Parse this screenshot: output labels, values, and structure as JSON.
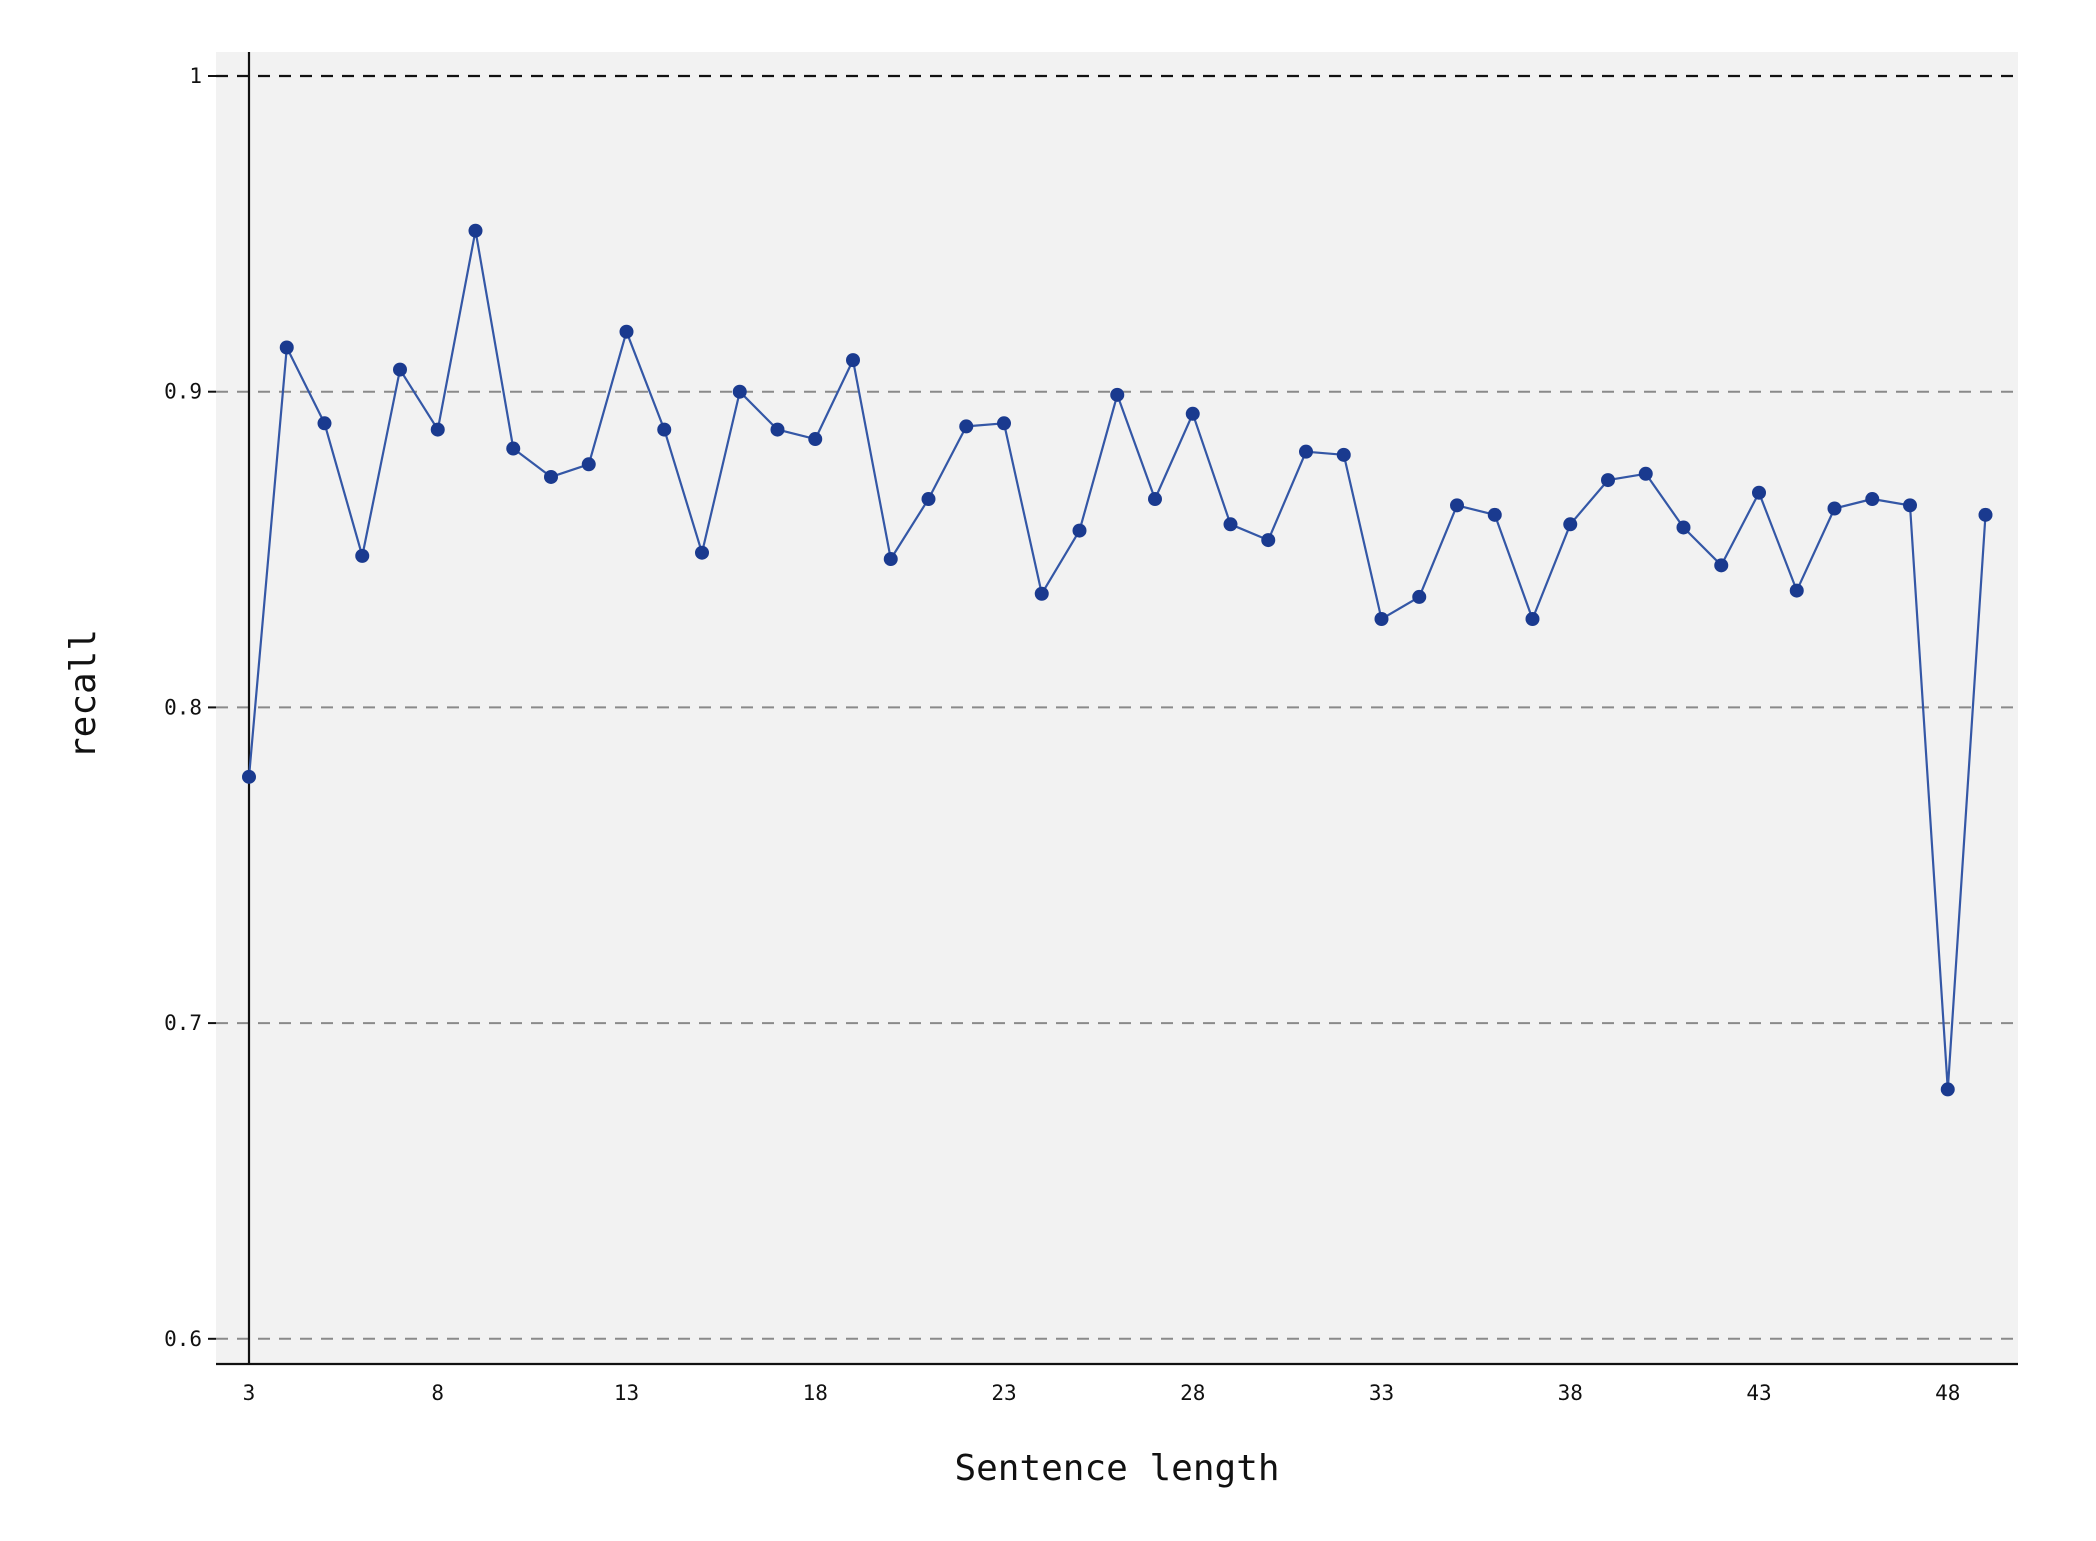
{
  "chart_data": {
    "type": "line",
    "title": "",
    "xlabel": "Sentence length",
    "ylabel": "recall",
    "xlim": [
      3,
      49
    ],
    "ylim": [
      0.59,
      1.0
    ],
    "x_ticks": [
      3,
      8,
      13,
      18,
      23,
      28,
      33,
      38,
      43,
      48
    ],
    "x_tick_labels": [
      "3",
      "8",
      "13",
      "18",
      "23",
      "28",
      "33",
      "38",
      "43",
      "48"
    ],
    "y_ticks": [
      0.6,
      0.7,
      0.8,
      0.9,
      1
    ],
    "y_tick_labels": [
      "0.6",
      "0.7",
      "0.8",
      "0.9",
      "1"
    ],
    "grid": "horizontal dashed",
    "series": [
      {
        "x": [
          3,
          4,
          5,
          6,
          7,
          8,
          9,
          10,
          11,
          12,
          13,
          14,
          15,
          16,
          17,
          18,
          19,
          20,
          21,
          22,
          23,
          24,
          25,
          26,
          27,
          28,
          29,
          30,
          31,
          32,
          33,
          34,
          35,
          36,
          37,
          38,
          39,
          40,
          41,
          42,
          43,
          44,
          45,
          46,
          47,
          48,
          49
        ],
        "values": [
          0.778,
          0.914,
          0.89,
          0.848,
          0.907,
          0.888,
          0.951,
          0.882,
          0.873,
          0.877,
          0.919,
          0.888,
          0.849,
          0.9,
          0.888,
          0.885,
          0.91,
          0.847,
          0.866,
          0.889,
          0.89,
          0.836,
          0.856,
          0.899,
          0.866,
          0.893,
          0.858,
          0.853,
          0.881,
          0.88,
          0.828,
          0.835,
          0.864,
          0.861,
          0.828,
          0.858,
          0.872,
          0.874,
          0.857,
          0.845,
          0.868,
          0.837,
          0.863,
          0.866,
          0.864,
          0.679,
          0.861
        ]
      }
    ],
    "colors": {
      "line": "#3457a6",
      "marker": "#1a3a8f",
      "plot_background": "#f2f2f2",
      "grid": "#8a8a8a"
    }
  }
}
